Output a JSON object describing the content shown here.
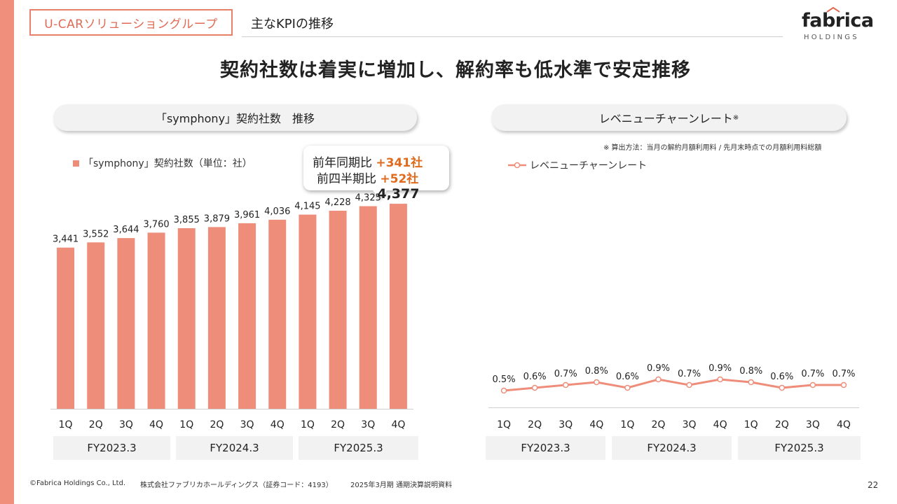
{
  "header": {
    "group_label": "U-CARソリューショングループ",
    "section_title": "主なKPIの推移",
    "logo_text": "fabrica",
    "logo_sub": "HOLDINGS"
  },
  "main_title": "契約社数は着実に増加し、解約率も低水準で安定推移",
  "left_panel": {
    "title": "「symphony」契約社数　推移",
    "legend": "「symphony」契約社数（単位：社）",
    "callout": {
      "yoy_label": "前年同期比",
      "yoy_value": "+341社",
      "qoq_label": "前四半期比",
      "qoq_value": "+52社"
    }
  },
  "right_panel": {
    "title": "レベニューチャーンレート",
    "title_note_mark": "※",
    "note": "※ 算出方法：当月の解約月額利用料 / 先月末時点での月額利用料総額",
    "legend": "レベニューチャーンレート"
  },
  "fiscal_years": [
    "FY2023.3",
    "FY2024.3",
    "FY2025.3"
  ],
  "colors": {
    "accent": "#ee8d79",
    "stripe": "#f0907c",
    "highlight": "#e06b1e"
  },
  "chart_data": [
    {
      "type": "bar",
      "categories": [
        "1Q",
        "2Q",
        "3Q",
        "4Q",
        "1Q",
        "2Q",
        "3Q",
        "4Q",
        "1Q",
        "2Q",
        "3Q",
        "4Q"
      ],
      "values": [
        3441,
        3552,
        3644,
        3760,
        3855,
        3879,
        3961,
        4036,
        4145,
        4228,
        4325,
        4377
      ],
      "labels": [
        "3,441",
        "3,552",
        "3,644",
        "3,760",
        "3,855",
        "3,879",
        "3,961",
        "4,036",
        "4,145",
        "4,228",
        "4,325",
        "4,377"
      ],
      "ylim": [
        0,
        4700
      ],
      "legend_placement": "top-left",
      "grid": false
    },
    {
      "type": "line",
      "categories": [
        "1Q",
        "2Q",
        "3Q",
        "4Q",
        "1Q",
        "2Q",
        "3Q",
        "4Q",
        "1Q",
        "2Q",
        "3Q",
        "4Q"
      ],
      "values": [
        0.5,
        0.6,
        0.7,
        0.8,
        0.6,
        0.9,
        0.7,
        0.9,
        0.8,
        0.6,
        0.7,
        0.7
      ],
      "labels": [
        "0.5%",
        "0.6%",
        "0.7%",
        "0.8%",
        "0.6%",
        "0.9%",
        "0.7%",
        "0.9%",
        "0.8%",
        "0.6%",
        "0.7%",
        "0.7%"
      ],
      "ylim": [
        0,
        10
      ],
      "legend_placement": "top-left",
      "grid": false
    }
  ],
  "footer": {
    "copyright": "©Fabrica Holdings Co., Ltd.",
    "company": "株式会社ファブリカホールディングス（証券コード：4193）",
    "document": "2025年3月期 通期決算説明資料",
    "page": "22"
  }
}
